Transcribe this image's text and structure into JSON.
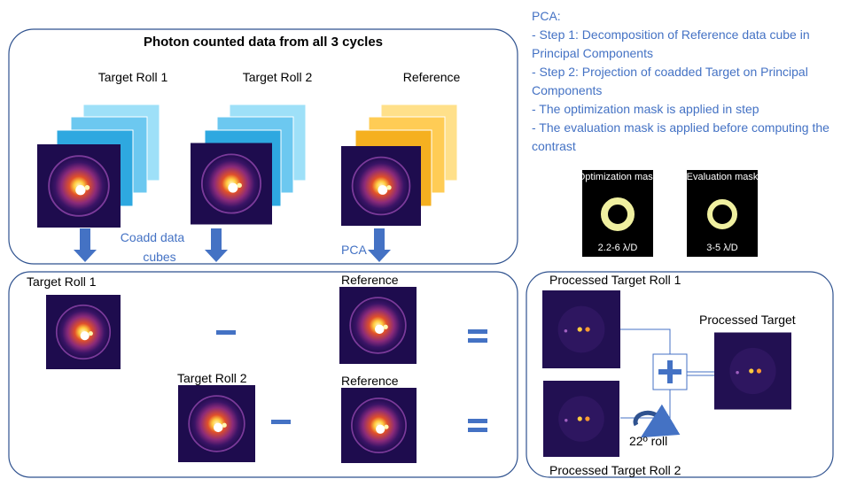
{
  "top_panel": {
    "title": "Photon counted data from all 3 cycles",
    "labels": [
      "Target Roll 1",
      "Target Roll 2",
      "Reference"
    ],
    "coadd": [
      "Coadd data",
      "cubes"
    ],
    "pca": "PCA"
  },
  "notes": {
    "heading": "PCA:",
    "items": [
      "- Step 1: Decomposition of Reference data cube in Principal Components",
      "- Step 2: Projection of coadded Target on Principal Components",
      "- The optimization mask is applied in step",
      "- The evaluation mask is applied before computing the contrast"
    ]
  },
  "masks": [
    {
      "title": "Optimization mask",
      "range": "2.2-6 λ/D"
    },
    {
      "title": "Evaluation mask",
      "range": "3-5 λ/D"
    }
  ],
  "bottom_panel": {
    "labels": [
      "Target Roll 1",
      "Reference",
      "Target Roll 2",
      "Reference"
    ]
  },
  "right_panel": {
    "roll1": "Processed Target Roll 1",
    "result": "Processed Target",
    "rotation": "22º roll",
    "roll2": "Processed Target Roll 2"
  }
}
